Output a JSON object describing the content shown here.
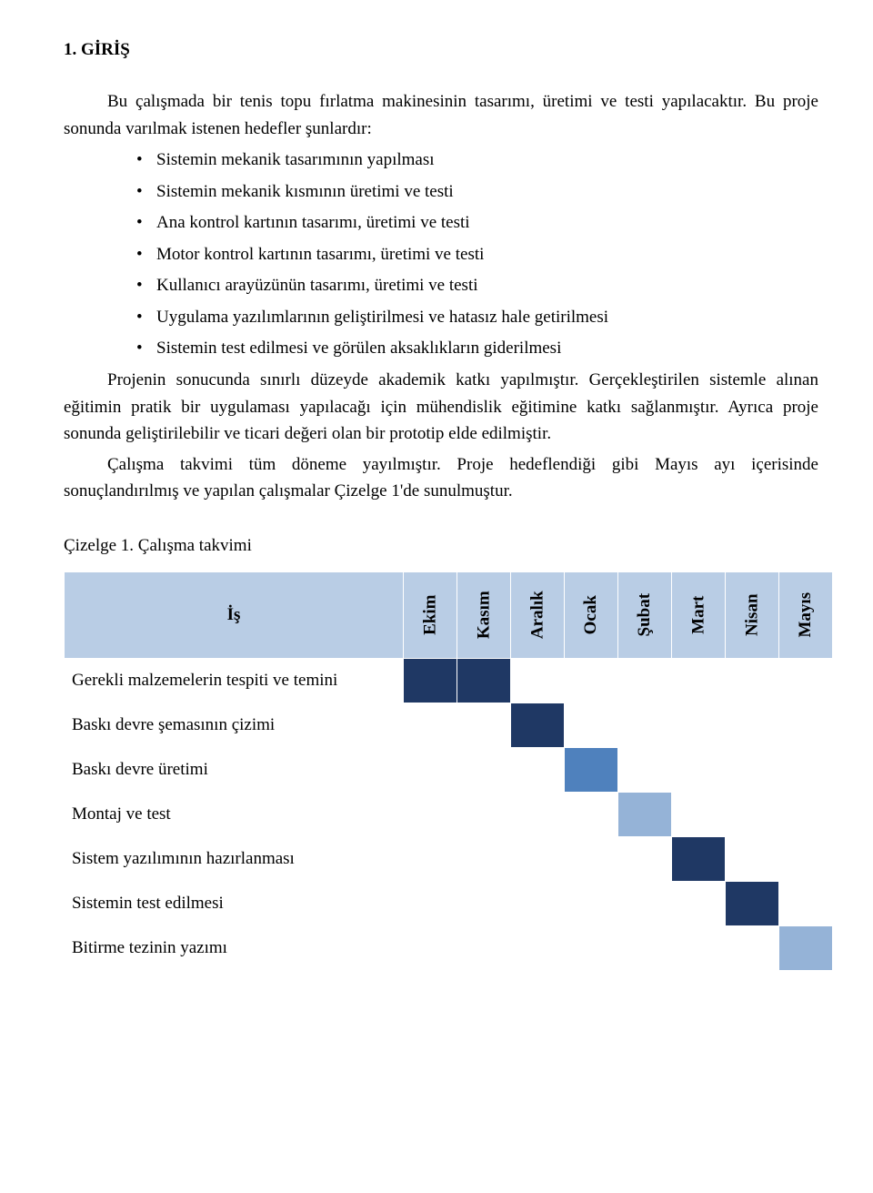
{
  "heading": "1. GİRİŞ",
  "para1": "Bu çalışmada bir tenis topu fırlatma makinesinin tasarımı, üretimi ve testi yapılacaktır. Bu proje sonunda varılmak istenen hedefler şunlardır:",
  "bullets": [
    "Sistemin mekanik tasarımının yapılması",
    "Sistemin mekanik kısmının üretimi ve testi",
    "Ana kontrol kartının tasarımı, üretimi ve testi",
    "Motor kontrol kartının tasarımı, üretimi ve testi",
    "Kullanıcı arayüzünün tasarımı, üretimi ve testi",
    "Uygulama yazılımlarının geliştirilmesi ve hatasız hale getirilmesi",
    "Sistemin test edilmesi ve görülen aksaklıkların giderilmesi"
  ],
  "para2": "Projenin sonucunda sınırlı düzeyde akademik katkı yapılmıştır. Gerçekleştirilen sistemle alınan eğitimin pratik bir uygulaması yapılacağı için mühendislik eğitimine katkı sağlanmıştır. Ayrıca proje sonunda geliştirilebilir ve ticari değeri olan bir prototip elde edilmiştir.",
  "para3": "Çalışma takvimi tüm döneme yayılmıştır. Proje hedeflendiği gibi Mayıs ayı içerisinde sonuçlandırılmış ve yapılan çalışmalar Çizelge 1'de sunulmuştur.",
  "caption": "Çizelge 1. Çalışma takvimi",
  "gantt": {
    "task_header": "İş",
    "months": [
      "Ekim",
      "Kasım",
      "Aralık",
      "Ocak",
      "Şubat",
      "Mart",
      "Nisan",
      "Mayıs"
    ],
    "header_bg": "#b9cde5",
    "row_bg": "#ffffff",
    "border_color": "#ffffff",
    "dark": "#1f3864",
    "mid": "#4f81bd",
    "light": "#95b3d7",
    "rows": [
      {
        "task": "Gerekli malzemelerin tespiti ve temini",
        "cells": [
          "dark",
          "dark",
          "",
          "",
          "",
          "",
          "",
          ""
        ]
      },
      {
        "task": "Baskı devre şemasının çizimi",
        "cells": [
          "",
          "",
          "dark",
          "",
          "",
          "",
          "",
          ""
        ]
      },
      {
        "task": "Baskı devre üretimi",
        "cells": [
          "",
          "",
          "",
          "mid",
          "",
          "",
          "",
          ""
        ]
      },
      {
        "task": "Montaj ve test",
        "cells": [
          "",
          "",
          "",
          "",
          "light",
          "",
          "",
          ""
        ]
      },
      {
        "task": "Sistem yazılımının hazırlanması",
        "cells": [
          "",
          "",
          "",
          "",
          "",
          "dark",
          "",
          ""
        ]
      },
      {
        "task": "Sistemin test edilmesi",
        "cells": [
          "",
          "",
          "",
          "",
          "",
          "",
          "dark",
          ""
        ]
      },
      {
        "task": "Bitirme tezinin yazımı",
        "cells": [
          "",
          "",
          "",
          "",
          "",
          "",
          "",
          "light"
        ]
      }
    ]
  }
}
